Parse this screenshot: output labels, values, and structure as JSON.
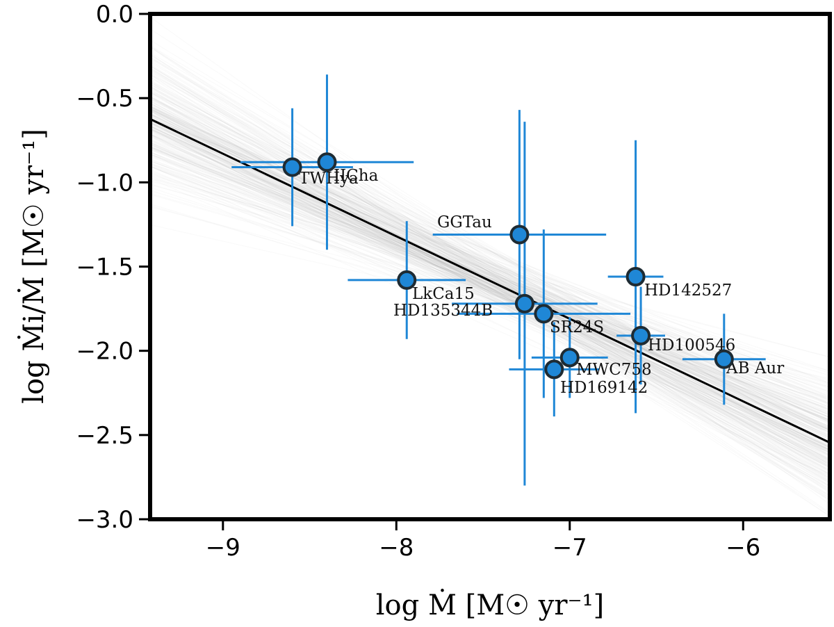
{
  "chart_data": {
    "type": "scatter",
    "title": "",
    "xlabel": "log Ṁ [M☉ yr⁻¹]",
    "ylabel": "log Ṁi/Ṁ [M☉ yr⁻¹]",
    "xlim": [
      -9.42,
      -5.5
    ],
    "ylim": [
      -3.0,
      0.0
    ],
    "xticks": [
      -9,
      -8,
      -7,
      -6
    ],
    "yticks": [
      0.0,
      -0.5,
      -1.0,
      -1.5,
      -2.0,
      -2.5,
      -3.0
    ],
    "xtick_labels": [
      "−9",
      "−8",
      "−7",
      "−6"
    ],
    "ytick_labels": [
      "0.0",
      "−0.5",
      "−1.0",
      "−1.5",
      "−2.0",
      "−2.5",
      "−3.0"
    ],
    "fit_line": {
      "slope": -0.49,
      "intercept": -5.24
    },
    "posterior_samples": 300,
    "colors": {
      "point": "#1f87d6",
      "error": "#1f87d6",
      "edge": "#1e2b33",
      "fit": "#000000",
      "samples": "#a0a0a0"
    },
    "points": [
      {
        "name": "TWHya",
        "x": -8.6,
        "y": -0.91,
        "xerr": 0.35,
        "yerr": 0.35
      },
      {
        "name": "IICha",
        "x": -8.4,
        "y": -0.88,
        "xerr": 0.5,
        "yerr": 0.52
      },
      {
        "name": "LkCa15",
        "x": -7.94,
        "y": -1.58,
        "xerr": 0.34,
        "yerr": 0.35
      },
      {
        "name": "GGTau",
        "x": -7.29,
        "y": -1.31,
        "xerr": 0.5,
        "yerr": 0.74
      },
      {
        "name": "HD135344B",
        "x": -7.26,
        "y": -1.72,
        "xerr": 0.42,
        "yerr": 1.08
      },
      {
        "name": "SR24S",
        "x": -7.15,
        "y": -1.78,
        "xerr": 0.5,
        "yerr": 0.5
      },
      {
        "name": "HD142527",
        "x": -6.62,
        "y": -1.56,
        "xerr": 0.16,
        "yerr": 0.81
      },
      {
        "name": "HD100546",
        "x": -6.59,
        "y": -1.91,
        "xerr": 0.14,
        "yerr": 0.29
      },
      {
        "name": "MWC758",
        "x": -7.0,
        "y": -2.04,
        "xerr": 0.22,
        "yerr": 0.24
      },
      {
        "name": "HD169142",
        "x": -7.09,
        "y": -2.11,
        "xerr": 0.26,
        "yerr": 0.28
      },
      {
        "name": "AB Aur",
        "x": -6.11,
        "y": -2.05,
        "xerr": 0.24,
        "yerr": 0.27
      }
    ]
  }
}
